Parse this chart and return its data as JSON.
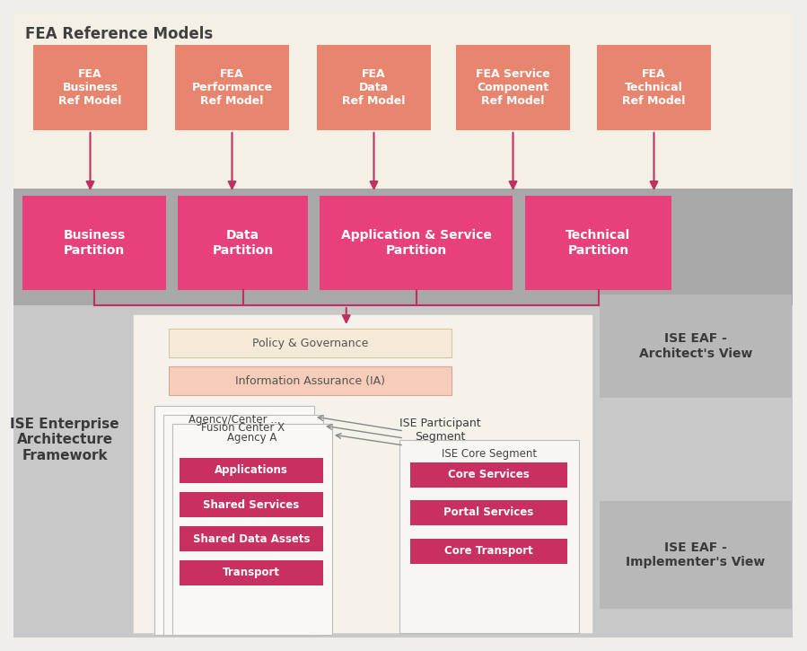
{
  "bg_color": "#f0eeeb",
  "fea_bg": "#f5f0e6",
  "fea_box_color": "#e8856e",
  "fea_title": "FEA Reference Models",
  "fea_boxes": [
    "FEA\nBusiness\nRef Model",
    "FEA\nPerformance\nRef Model",
    "FEA\nData\nRef Model",
    "FEA Service\nComponent\nRef Model",
    "FEA\nTechnical\nRef Model"
  ],
  "arch_bg": "#a8a8a8",
  "partition_color": "#e8407a",
  "partition_boxes": [
    "Business\nPartition",
    "Data\nPartition",
    "Application & Service\nPartition",
    "Technical\nPartition"
  ],
  "ise_eaf_arch_label": "ISE EAF -\nArchitect's View",
  "lower_bg": "#c8c8c8",
  "policy_bg": "#f5ead8",
  "policy_label": "Policy & Governance",
  "ia_bg": "#f5cdb8",
  "ia_label": "Information Assurance (IA)",
  "left_label": "ISE Enterprise\nArchitecture\nFramework",
  "stacked_labels": [
    "Agency/Center ...",
    "Fusion Center X",
    "Agency A"
  ],
  "participant_label": "ISE Participant\nSegment",
  "agency_boxes": [
    "Applications",
    "Shared Services",
    "Shared Data Assets",
    "Transport"
  ],
  "core_segment_label": "ISE Core Segment",
  "core_boxes": [
    "Core Services",
    "Portal Services",
    "Core Transport"
  ],
  "ise_eaf_impl_label": "ISE EAF -\nImplementer's View",
  "arrow_color": "#c03060",
  "gray_arrow": "#888888",
  "panel_bg": "#f5f2ec",
  "core_panel_bg": "#f5f2ec",
  "pink_box": "#c83060"
}
